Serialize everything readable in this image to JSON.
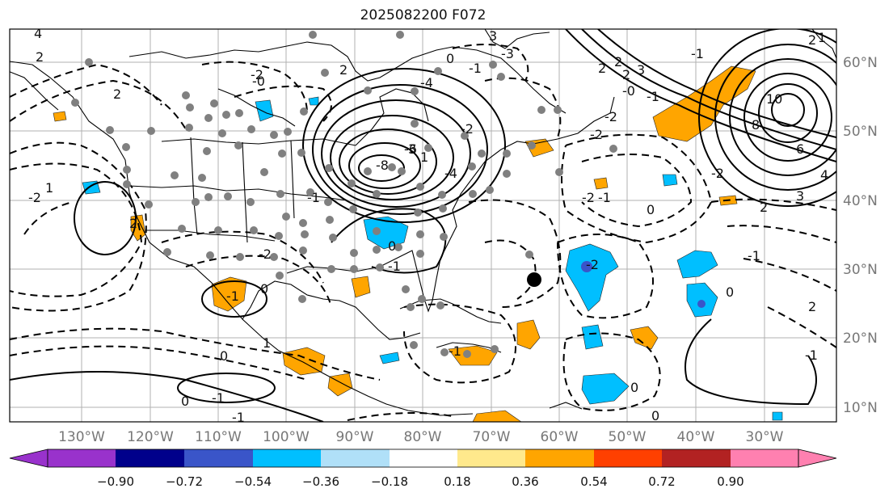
{
  "title": "2025082200 F072",
  "map": {
    "lat_labels": [
      "60°N",
      "50°N",
      "40°N",
      "30°N",
      "20°N",
      "10°N"
    ],
    "lon_labels": [
      "130°W",
      "120°W",
      "110°W",
      "100°W",
      "90°W",
      "80°W",
      "70°W",
      "60°W",
      "50°W",
      "40°W",
      "30°W"
    ],
    "contour_labels": [
      "4",
      "2",
      "2",
      "-2",
      "1",
      "2",
      "0",
      "-1",
      "0",
      "1",
      "-1",
      "0",
      "-1",
      "-2",
      "-2",
      "2",
      "3",
      "-3",
      "0",
      "-2",
      "1",
      "3",
      "-2",
      "-1",
      "-4",
      "-6",
      "-8",
      "-4",
      "-2",
      "2",
      "-2",
      "2",
      "-1",
      "0",
      "-0",
      "-2",
      "0",
      "-1",
      "2",
      "-1",
      "0",
      "-1",
      "-1",
      "0",
      "10",
      "8",
      "6",
      "4",
      "3",
      "2",
      "1",
      "-1",
      "-2",
      "0",
      "2",
      "-1",
      "-0",
      "-1",
      "3",
      "2"
    ],
    "colors": {
      "land_line": "#000000",
      "grid": "#aaaaaa",
      "dots": "#808080",
      "storm_marker": "#000000",
      "positive_shade": "#ffa500",
      "negative_shade": "#00bfff",
      "negative_core": "#3a55c9"
    }
  },
  "colorbar": {
    "ticks": [
      "−0.90",
      "−0.72",
      "−0.54",
      "−0.36",
      "−0.18",
      "0.18",
      "0.36",
      "0.54",
      "0.72",
      "0.90"
    ],
    "colors": [
      "#9932cc",
      "#00008b",
      "#3a55c9",
      "#00bfff",
      "#b0e0f8",
      "#ffffff",
      "#ffe98c",
      "#ffa500",
      "#ff4000",
      "#b22222",
      "#ff80b0"
    ]
  }
}
